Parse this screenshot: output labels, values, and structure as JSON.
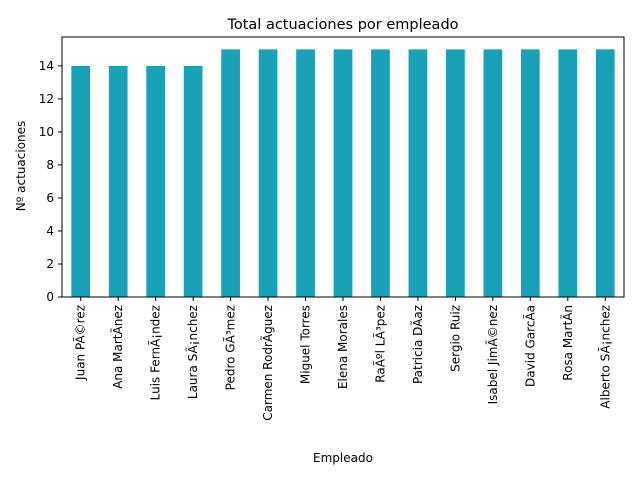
{
  "chart_data": {
    "type": "bar",
    "title": "Total actuaciones por empleado",
    "xlabel": "Empleado",
    "ylabel": "Nº actuaciones",
    "categories": [
      "Juan PÃ©rez",
      "Ana MartÃ­nez",
      "Luis FernÃ¡ndez",
      "Laura SÃ¡nchez",
      "Pedro GÃ³mez",
      "Carmen RodrÃ­guez",
      "Miguel Torres",
      "Elena Morales",
      "RaÃºl LÃ³pez",
      "Patricia DÃ­az",
      "Sergio Ruiz",
      "Isabel JimÃ©nez",
      "David GarcÃ­a",
      "Rosa MartÃ­n",
      "Alberto SÃ¡nchez"
    ],
    "values": [
      14,
      14,
      14,
      14,
      15,
      15,
      15,
      15,
      15,
      15,
      15,
      15,
      15,
      15,
      15
    ],
    "ylim": [
      0,
      15.75
    ],
    "yticks": [
      0,
      2,
      4,
      6,
      8,
      10,
      12,
      14
    ],
    "grid": false,
    "bar_color": "#17a2b8"
  }
}
